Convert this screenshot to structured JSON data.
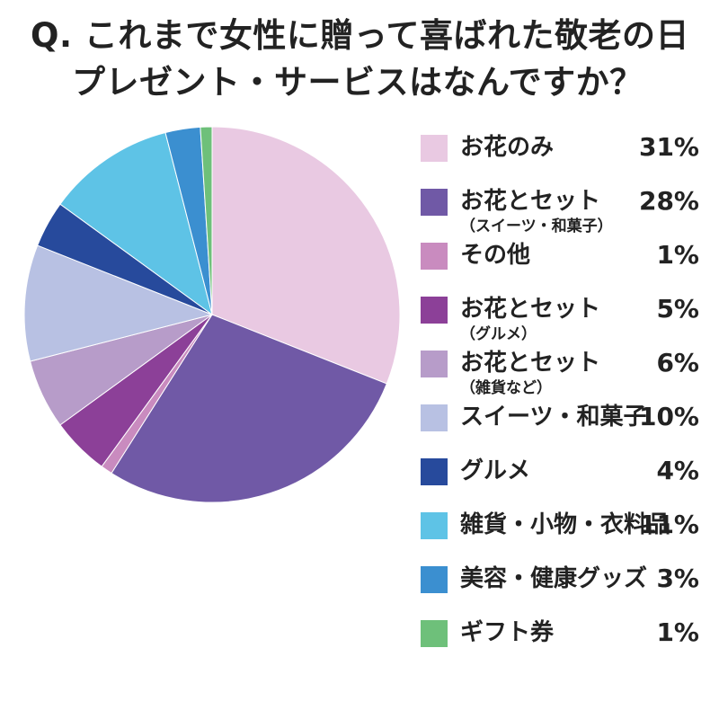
{
  "title": {
    "line1": "Q. これまで女性に贈って喜ばれた敬老の日",
    "line2": "プレゼント・サービスはなんですか？"
  },
  "chart_data": {
    "type": "pie",
    "title": "Q. これまで女性に贈って喜ばれた敬老の日プレゼント・サービスはなんですか？",
    "legend_position": "right",
    "slices": [
      {
        "label": "お花のみ",
        "sublabel": "",
        "value": 31,
        "value_label": "31%",
        "color": "#e9c9e2"
      },
      {
        "label": "お花とセット",
        "sublabel": "（スイーツ・和菓子）",
        "value": 28,
        "value_label": "28%",
        "color": "#7059a6"
      },
      {
        "label": "その他",
        "sublabel": "",
        "value": 1,
        "value_label": "1%",
        "color": "#c98bbf"
      },
      {
        "label": "お花とセット",
        "sublabel": "（グルメ）",
        "value": 5,
        "value_label": "5%",
        "color": "#8c4098"
      },
      {
        "label": "お花とセット",
        "sublabel": "（雑貨など）",
        "value": 6,
        "value_label": "6%",
        "color": "#b79cc9"
      },
      {
        "label": "スイーツ・和菓子",
        "sublabel": "",
        "value": 10,
        "value_label": "10%",
        "color": "#b8c1e3"
      },
      {
        "label": "グルメ",
        "sublabel": "",
        "value": 4,
        "value_label": "4%",
        "color": "#274a9c"
      },
      {
        "label": "雑貨・小物・衣料品",
        "sublabel": "",
        "value": 11,
        "value_label": "11%",
        "color": "#5ec3e6"
      },
      {
        "label": "美容・健康グッズ",
        "sublabel": "",
        "value": 3,
        "value_label": "3%",
        "color": "#3b8fd0"
      },
      {
        "label": "ギフト券",
        "sublabel": "",
        "value": 1,
        "value_label": "1%",
        "color": "#6ec07a"
      }
    ]
  }
}
